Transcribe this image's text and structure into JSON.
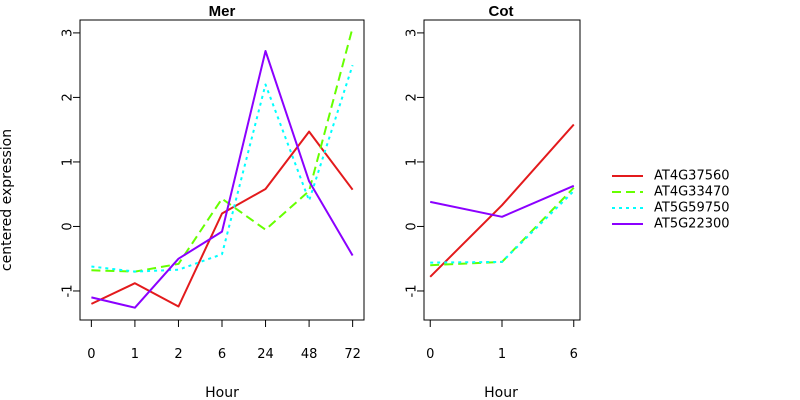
{
  "ylabel": "centered expression",
  "colors": {
    "AT4G37560": "#e31a1c",
    "AT4G33470": "#66ff00",
    "AT5G59750": "#00ffff",
    "AT5G22300": "#8b00ff"
  },
  "chart_data": [
    {
      "type": "line",
      "title": "Mer",
      "xlabel": "Hour",
      "ylabel": "centered expression",
      "categories": [
        "0",
        "1",
        "2",
        "6",
        "24",
        "48",
        "72"
      ],
      "ylim": [
        -1.45,
        3.2
      ],
      "yticks": [
        -1,
        0,
        1,
        2,
        3
      ],
      "grid": false,
      "series": [
        {
          "name": "AT4G37560",
          "values": [
            -1.2,
            -0.88,
            -1.24,
            0.2,
            0.58,
            1.47,
            0.57
          ]
        },
        {
          "name": "AT4G33470",
          "values": [
            -0.68,
            -0.7,
            -0.58,
            0.43,
            -0.05,
            0.55,
            3.08
          ]
        },
        {
          "name": "AT5G59750",
          "values": [
            -0.62,
            -0.7,
            -0.67,
            -0.43,
            2.2,
            0.4,
            2.5
          ]
        },
        {
          "name": "AT5G22300",
          "values": [
            -1.1,
            -1.26,
            -0.5,
            -0.08,
            2.72,
            0.7,
            -0.45
          ]
        }
      ]
    },
    {
      "type": "line",
      "title": "Cot",
      "xlabel": "Hour",
      "ylabel": "",
      "categories": [
        "0",
        "1",
        "6"
      ],
      "ylim": [
        -1.45,
        3.2
      ],
      "yticks": [
        -1,
        0,
        1,
        2,
        3
      ],
      "grid": false,
      "series": [
        {
          "name": "AT4G37560",
          "values": [
            -0.78,
            0.33,
            1.58
          ]
        },
        {
          "name": "AT4G33470",
          "values": [
            -0.6,
            -0.55,
            0.6
          ]
        },
        {
          "name": "AT5G59750",
          "values": [
            -0.56,
            -0.55,
            0.55
          ]
        },
        {
          "name": "AT5G22300",
          "values": [
            0.38,
            0.15,
            0.63
          ]
        }
      ]
    }
  ],
  "legend": {
    "placement": "right",
    "entries": [
      "AT4G37560",
      "AT4G33470",
      "AT5G59750",
      "AT5G22300"
    ]
  }
}
